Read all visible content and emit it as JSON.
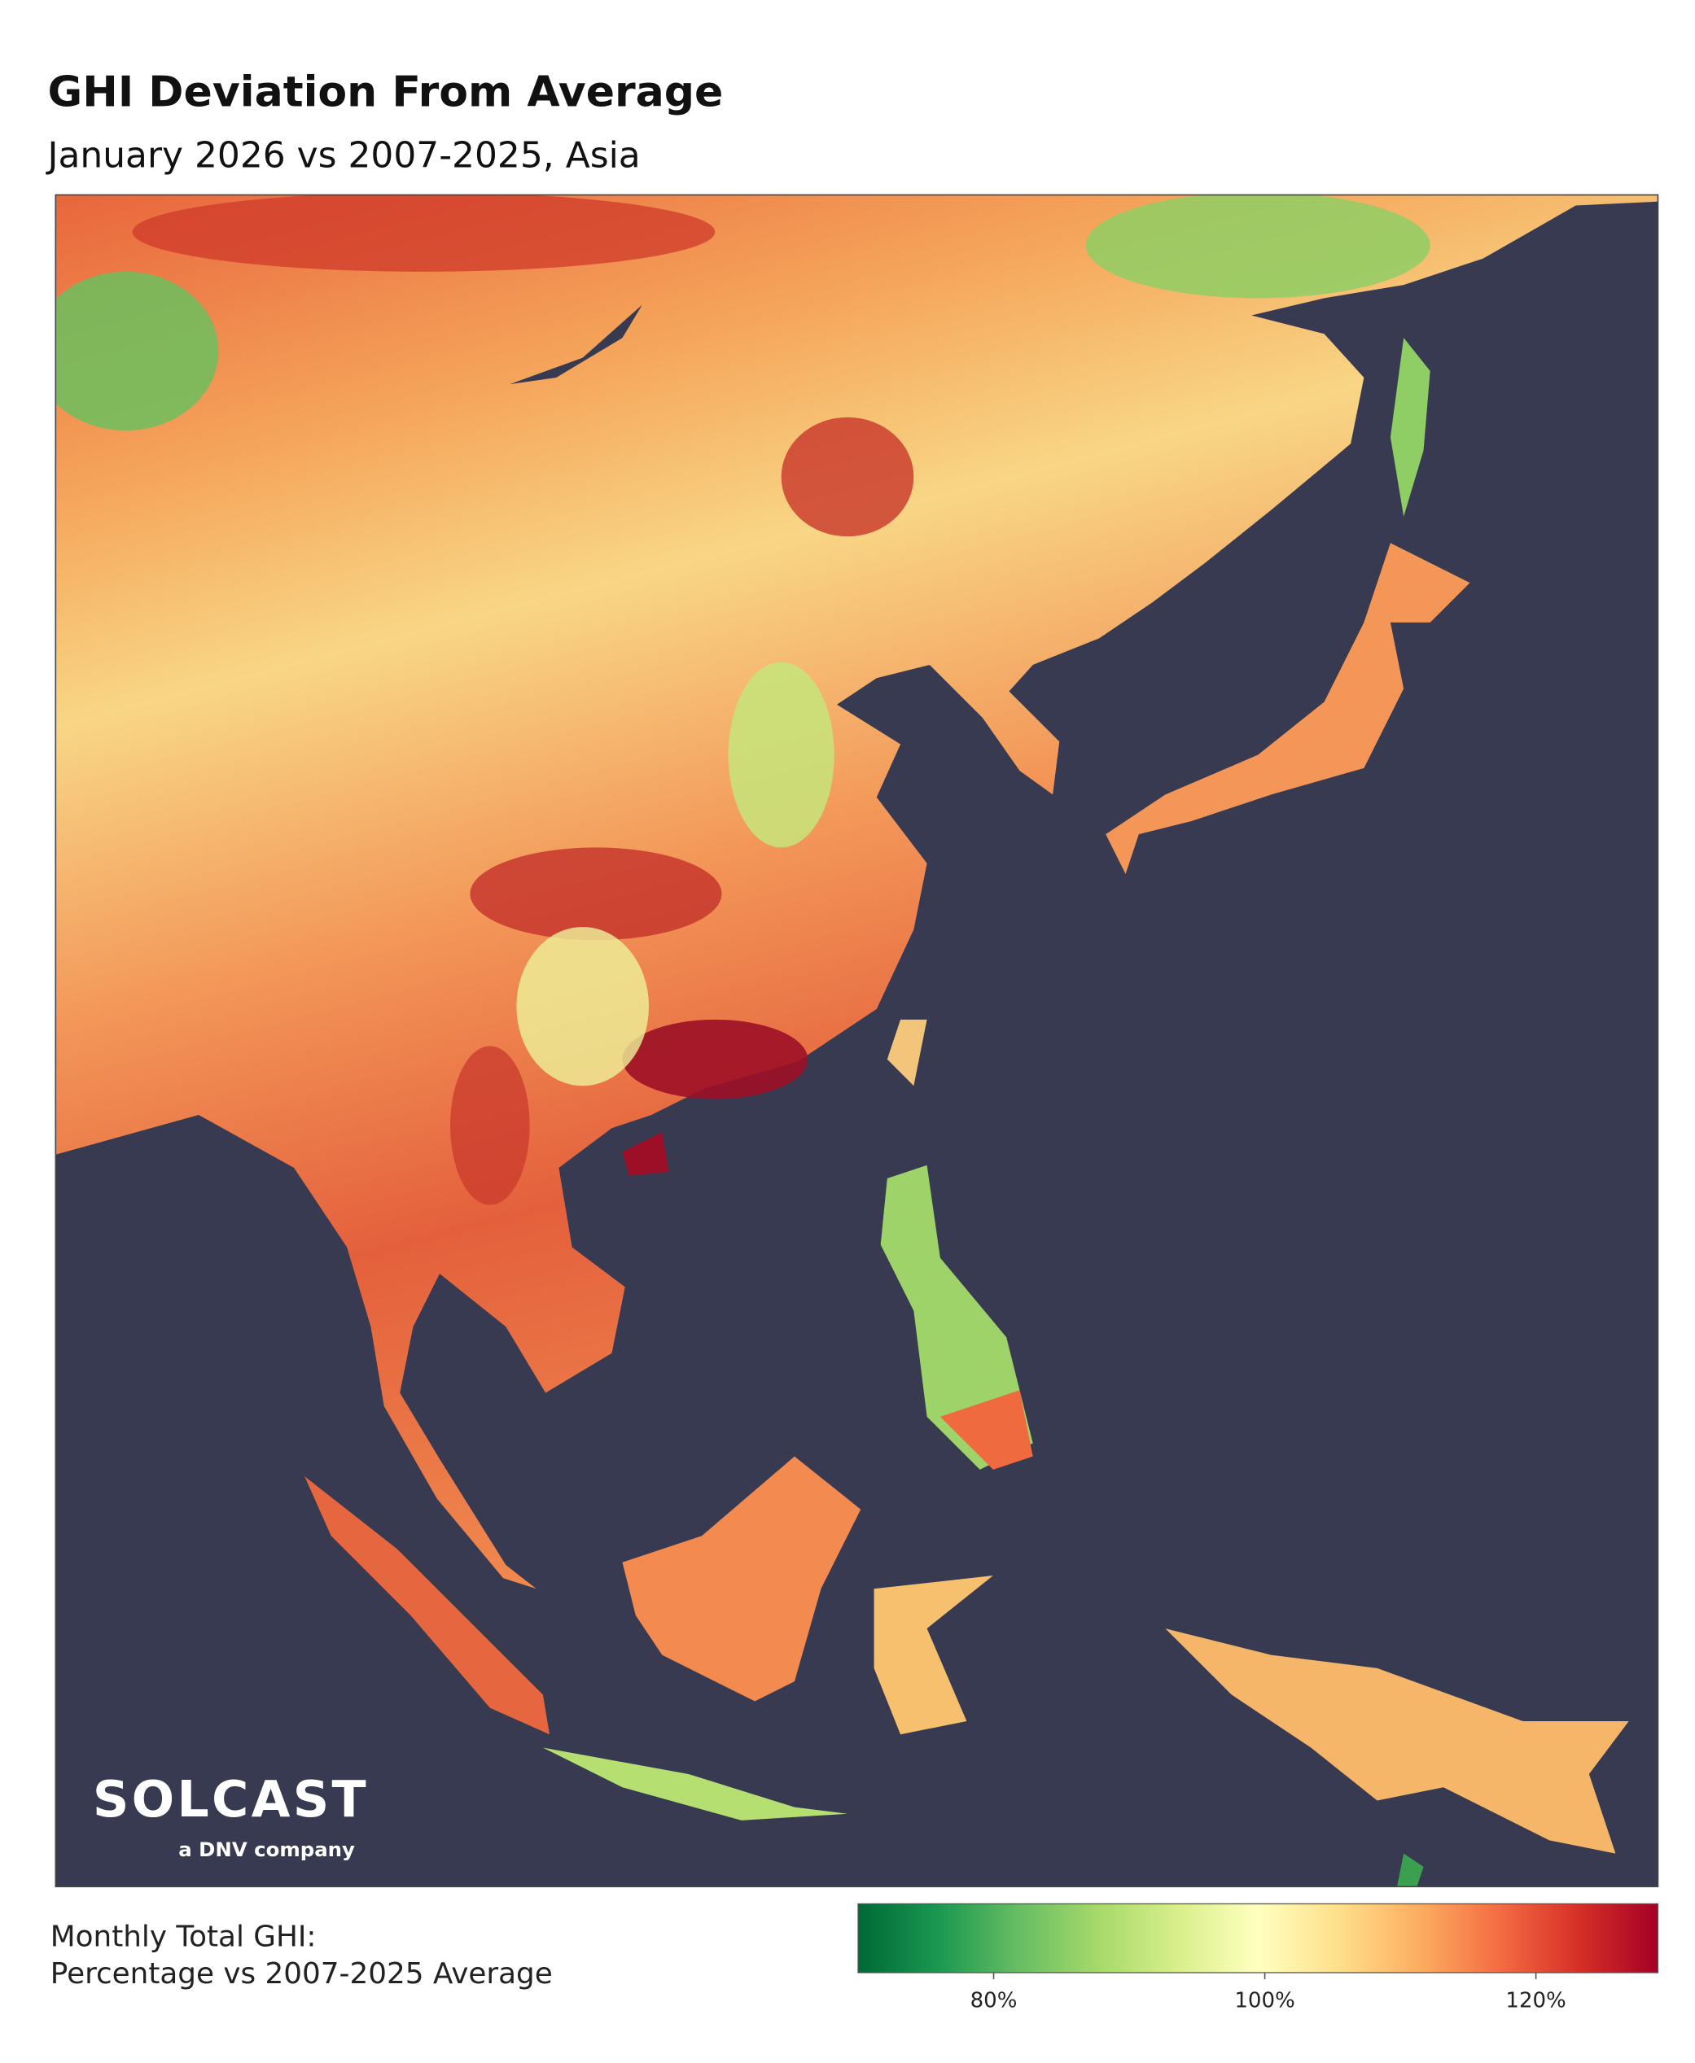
{
  "title": "GHI Deviation From Average",
  "subtitle": "January 2026 vs 2007-2025, Asia",
  "logo": {
    "name": "SOLCAST",
    "tagline": "a DNV company"
  },
  "legend": {
    "title": [
      "Monthly Total GHI:",
      "Percentage vs 2007-2025 Average"
    ],
    "colors": [
      "#006837",
      "#1a9850",
      "#66bd63",
      "#a6d96a",
      "#d9ef8b",
      "#ffffbf",
      "#fee08b",
      "#fdae61",
      "#f46d43",
      "#d73027",
      "#a50026"
    ],
    "lim": [
      70,
      129
    ],
    "ticks": [
      {
        "value": 80,
        "label": "80%"
      },
      {
        "value": 100,
        "label": "100%"
      },
      {
        "value": 120,
        "label": "120%"
      }
    ]
  }
}
